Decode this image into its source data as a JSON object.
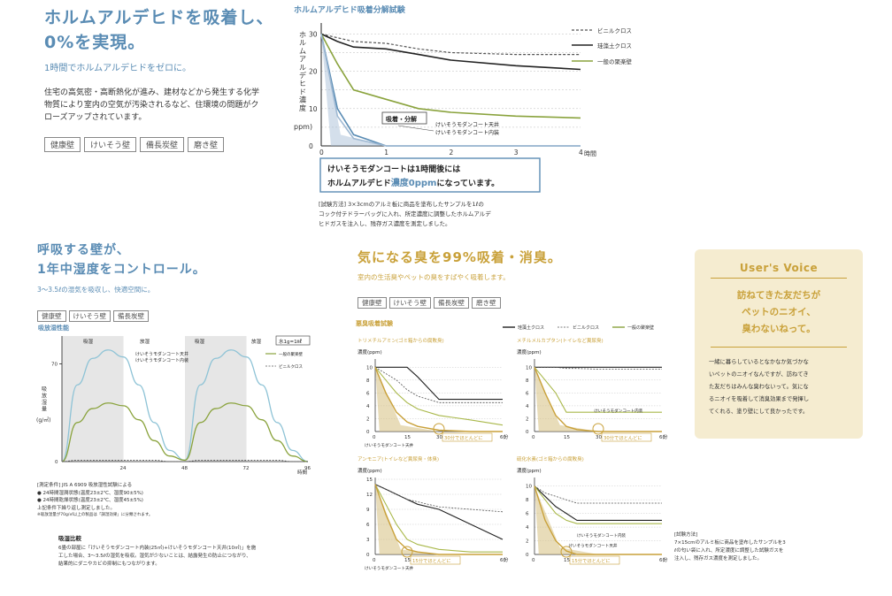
{
  "sec1": {
    "title_line1": "ホルムアルデヒドを吸着し、",
    "title_line2": "0%を実現。",
    "subtitle": "1時間でホルムアルデヒドをゼロに。",
    "body_line1": "住宅の高気密・高断熱化が進み、建材などから発生する化学",
    "body_line2": "物質により室内の空気が汚染されるなど、住環境の問題がク",
    "body_line3": "ローズアップされています。",
    "tags": [
      "健康壁",
      "けいそう壁",
      "備長炭壁",
      "磨き壁"
    ]
  },
  "chart1": {
    "title": "ホルムアルデヒド吸着分解試験",
    "ylabel": "ホルムアルデヒド濃度",
    "yunit": "ppm)",
    "x_unit": "時間",
    "legend": [
      "ビニルクロス",
      "珪藻土クロス",
      "一般の聚楽壁"
    ],
    "callout_adsorb": "吸着・分解",
    "label_ceiling": "けいそうモダンコート天井",
    "label_interior": "けいそうモダンコート内装",
    "box_line1": "けいそうモダンコートは1時間後には",
    "box_line2_a": "ホルムアルデヒド",
    "box_line2_b": "濃度0ppm",
    "box_line2_c": "になっています。",
    "method_line1": "[試験方法] 3×3cmのアルミ板に商品を塗布したサンプルを1ℓの",
    "method_line2": "コック付テドラーバッグに入れ、所定濃度に調整したホルムアルデ",
    "method_line3": "ヒドガスを注入し、残存ガス濃度を測定しました。"
  },
  "sec2": {
    "title_line1": "呼吸する壁が、",
    "title_line2": "1年中湿度をコントロール。",
    "subtitle": "3～3.5ℓの湿気を吸収し、快適空間に。",
    "tags": [
      "健康壁",
      "けいそう壁",
      "備長炭壁"
    ]
  },
  "chart2": {
    "title": "吸放湿性能",
    "phases": [
      "吸湿",
      "放湿",
      "吸湿",
      "放湿"
    ],
    "unit_box": "水1g=1㎖",
    "ylabel": "吸放湿量",
    "yunit": "(g/㎡)",
    "legend": [
      "けいそうモダンコート天井",
      "けいそうモダンコート内装",
      "一般の聚楽壁",
      "ビニルクロス"
    ],
    "x_unit": "時間",
    "notes": [
      "[測定条件] JIS A 6909 吸放湿性試験による",
      "● 24時間湿潤状態(温度23±2℃、湿度90±5%)",
      "● 24時間乾燥状態(温度23±2℃、湿度45±5%)",
      "上記条件下繰り返し測定しました。",
      "※吸放湿量が70g/㎡以上の製品は「調湿効果」に分類されます。"
    ],
    "compare_title": "吸湿比較",
    "compare_line1": "6畳の部屋に「けいそうモダンコート内装(25㎡)+けいそうモダンコート天井(10㎡)」を施",
    "compare_line2": "工した場合、3～3.5ℓの湿気を吸収。湿気が少ないことは、結露発生の防止につながり、",
    "compare_line3": "結果的にダニやカビの抑制にもつながります。"
  },
  "sec3": {
    "title": "気になる臭を99%吸着・消臭。",
    "subtitle": "室内の生活臭やペットの臭をすばやく吸着します。",
    "tags": [
      "健康壁",
      "けいそう壁",
      "備長炭壁",
      "磨き壁"
    ],
    "test_title": "悪臭吸着試験",
    "legend": [
      "珪藻土クロス",
      "ビニルクロス",
      "一般の聚楽壁"
    ],
    "yunit": "濃度(ppm)",
    "x_unit": "分",
    "callout": "30分でほとんどに",
    "callout15": "15分でほとんどに",
    "label_ceiling": "けいそうモダンコート天井",
    "label_interior": "けいそうモダンコート内装",
    "panels": [
      "トリメチルアミン(ゴミ箱からの腐敗臭)",
      "メチルメルカプタン(トイレなど糞尿臭)",
      "アンモニア(トイレなど糞尿臭・体臭)",
      "硫化水素(ゴミ箱からの腐敗臭)"
    ],
    "method_title": "[試験方法]",
    "method_line1": "7×15cmのアルミ板に商品を塗布したサンプルを3",
    "method_line2": "ℓの匂い袋に入れ、所定濃度に調整した試験ガスを",
    "method_line3": "注入し、残存ガス濃度を測定しました。"
  },
  "voice": {
    "title": "User's Voice",
    "quote1": "訪ねてきた友だちが",
    "quote2": "ペットのニオイ、",
    "quote3": "臭わないねって。",
    "body": [
      "一緒に暮らしているとなかなか気づかな",
      "いペットのニオイなんですが、訪ねてき",
      "た友だちはみんな臭わないって。気にな",
      "るニオイを吸着して消臭効果まで発揮し",
      "てくれる、塗り壁にして良かったです。"
    ]
  },
  "chart_data": [
    {
      "type": "line",
      "title": "ホルムアルデヒド吸着分解試験",
      "xlabel": "時間",
      "ylabel": "ホルムアルデヒド濃度(ppm)",
      "x": [
        0,
        0.25,
        0.5,
        1,
        1.5,
        2,
        3,
        4
      ],
      "xlim": [
        0,
        4
      ],
      "ylim": [
        0,
        32
      ],
      "yticks": [
        0,
        10,
        20,
        30
      ],
      "series": [
        {
          "name": "ビニルクロス",
          "values": [
            30,
            29,
            28,
            27.5,
            26,
            25,
            24.5,
            24.5
          ]
        },
        {
          "name": "珪藻土クロス",
          "values": [
            30,
            28,
            26.5,
            26,
            24.5,
            23,
            21.5,
            20.5
          ]
        },
        {
          "name": "一般の聚楽壁",
          "values": [
            30,
            22,
            15,
            12.5,
            10,
            9,
            8,
            7.5
          ]
        },
        {
          "name": "けいそうモダンコート天井",
          "values": [
            30,
            10,
            3,
            0,
            0,
            0,
            0,
            0
          ]
        },
        {
          "name": "けいそうモダンコート内装",
          "values": [
            30,
            8,
            2,
            0,
            0,
            0,
            0,
            0
          ]
        }
      ]
    },
    {
      "type": "line",
      "title": "吸放湿性能",
      "xlabel": "時間",
      "ylabel": "吸放湿量(g/㎡)",
      "x": [
        0,
        6,
        12,
        18,
        24,
        30,
        36,
        42,
        48,
        54,
        60,
        66,
        72,
        78,
        84,
        90,
        96
      ],
      "xticks": [
        24,
        48,
        72,
        96
      ],
      "yticks": [
        0,
        70
      ],
      "ylim": [
        0,
        90
      ],
      "series": [
        {
          "name": "けいそうモダンコート",
          "values": [
            0,
            55,
            74,
            80,
            75,
            55,
            28,
            8,
            1,
            55,
            74,
            80,
            75,
            55,
            28,
            8,
            0
          ]
        },
        {
          "name": "一般の聚楽壁",
          "values": [
            0,
            28,
            38,
            42,
            40,
            30,
            15,
            4,
            1,
            28,
            38,
            42,
            40,
            30,
            15,
            4,
            0
          ]
        },
        {
          "name": "ビニルクロス",
          "values": [
            0,
            1,
            1,
            1,
            1,
            1,
            1,
            0,
            0,
            1,
            1,
            1,
            1,
            1,
            1,
            0,
            0
          ]
        }
      ]
    },
    {
      "type": "line",
      "title": "トリメチルアミン(ゴミ箱からの腐敗臭)",
      "xlabel": "分",
      "ylabel": "濃度(ppm)",
      "x": [
        0,
        5,
        10,
        15,
        20,
        30,
        45,
        60
      ],
      "xticks": [
        0,
        15,
        30,
        60
      ],
      "yticks": [
        0,
        2,
        4,
        6,
        8,
        10
      ],
      "ylim": [
        0,
        11
      ],
      "series": [
        {
          "name": "珪藻土クロス",
          "values": [
            10,
            10,
            10,
            10,
            8.5,
            5,
            5,
            5
          ]
        },
        {
          "name": "ビニルクロス",
          "values": [
            10,
            9,
            8,
            6.5,
            5.5,
            4.5,
            4.5,
            4.5
          ]
        },
        {
          "name": "一般の聚楽壁",
          "values": [
            10,
            8,
            6,
            4.5,
            3.5,
            2.5,
            1.8,
            1
          ]
        },
        {
          "name": "けいそうモダンコート",
          "values": [
            10,
            6,
            3,
            1.5,
            0.8,
            0.2,
            0,
            0
          ]
        }
      ]
    },
    {
      "type": "line",
      "title": "メチルメルカプタン(トイレなど糞尿臭)",
      "xlabel": "分",
      "ylabel": "濃度(ppm)",
      "x": [
        0,
        5,
        10,
        15,
        20,
        30,
        45,
        60
      ],
      "xticks": [
        0,
        15,
        30,
        60
      ],
      "yticks": [
        0,
        2,
        4,
        6,
        8,
        10
      ],
      "ylim": [
        0,
        11
      ],
      "series": [
        {
          "name": "珪藻土クロス",
          "values": [
            10,
            10,
            10,
            10,
            10,
            10,
            10,
            10
          ]
        },
        {
          "name": "ビニルクロス",
          "values": [
            10,
            10,
            10,
            9.8,
            9.8,
            9.7,
            9.7,
            9.7
          ]
        },
        {
          "name": "一般の聚楽壁",
          "values": [
            10,
            8,
            6,
            3,
            3,
            3,
            3,
            3
          ]
        },
        {
          "name": "けいそうモダンコート",
          "values": [
            10,
            6,
            2.5,
            0.8,
            0.3,
            0,
            0,
            0
          ]
        }
      ]
    },
    {
      "type": "line",
      "title": "アンモニア(トイレなど糞尿臭・体臭)",
      "xlabel": "分",
      "ylabel": "濃度(ppm)",
      "x": [
        0,
        5,
        10,
        15,
        20,
        30,
        45,
        60
      ],
      "xticks": [
        0,
        15,
        30,
        60
      ],
      "yticks": [
        0,
        3,
        6,
        9,
        12,
        15
      ],
      "ylim": [
        0,
        15
      ],
      "series": [
        {
          "name": "珪藻土クロス",
          "values": [
            14,
            13,
            12,
            11,
            10,
            9,
            6,
            3
          ]
        },
        {
          "name": "ビニルクロス",
          "values": [
            14,
            13,
            12,
            11,
            10.5,
            9.5,
            9,
            8.5
          ]
        },
        {
          "name": "一般の聚楽壁",
          "values": [
            14,
            10,
            6,
            3,
            2,
            1,
            0.5,
            0.5
          ]
        },
        {
          "name": "けいそうモダンコート",
          "values": [
            14,
            8,
            3,
            1,
            0.5,
            0,
            0,
            0
          ]
        }
      ]
    },
    {
      "type": "line",
      "title": "硫化水素(ゴミ箱からの腐敗臭)",
      "xlabel": "分",
      "ylabel": "濃度(ppm)",
      "x": [
        0,
        5,
        10,
        15,
        20,
        30,
        45,
        60
      ],
      "xticks": [
        0,
        15,
        30,
        60
      ],
      "yticks": [
        0,
        2,
        4,
        6,
        8,
        10
      ],
      "ylim": [
        0,
        11
      ],
      "series": [
        {
          "name": "珪藻土クロス",
          "values": [
            10,
            8.5,
            7,
            6,
            5,
            5,
            5,
            5
          ]
        },
        {
          "name": "ビニルクロス",
          "values": [
            10,
            9,
            8.5,
            8,
            7.5,
            7.5,
            7.5,
            7.5
          ]
        },
        {
          "name": "一般の聚楽壁",
          "values": [
            10,
            8,
            6,
            5,
            4.5,
            4.5,
            4.5,
            4.5
          ]
        },
        {
          "name": "けいそうモダンコート",
          "values": [
            10,
            5,
            2,
            0.5,
            0,
            0,
            0,
            0
          ]
        }
      ]
    }
  ]
}
